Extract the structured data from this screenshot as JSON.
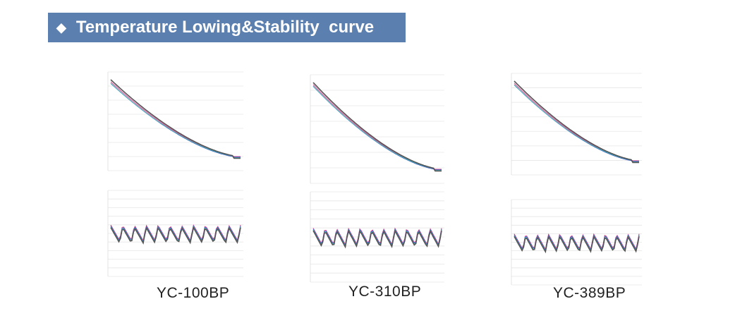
{
  "header": {
    "title": "Temperature Lowing&Stability  curve"
  },
  "products": [
    {
      "label": "YC-100BP"
    },
    {
      "label": "YC-310BP"
    },
    {
      "label": "YC-389BP"
    }
  ]
}
